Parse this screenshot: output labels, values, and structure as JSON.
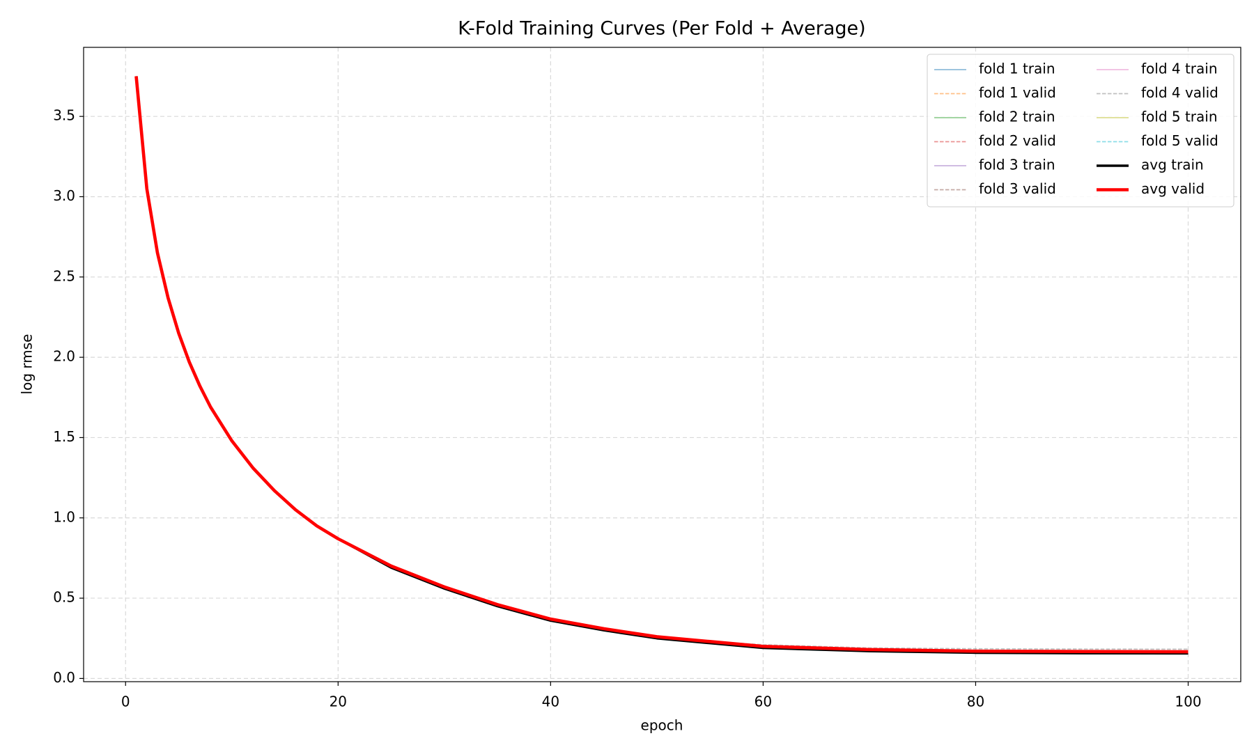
{
  "chart_data": {
    "type": "line",
    "title": "K-Fold Training Curves (Per Fold + Average)",
    "x_label": "epoch",
    "y_label": "log rmse",
    "x": [
      1,
      2,
      3,
      4,
      5,
      6,
      7,
      8,
      10,
      12,
      14,
      16,
      18,
      20,
      25,
      30,
      35,
      40,
      45,
      50,
      55,
      60,
      70,
      80,
      90,
      100
    ],
    "xlim": [
      -3.95,
      104.95
    ],
    "xticks": [
      0,
      20,
      40,
      60,
      80,
      100
    ],
    "ylim": [
      -0.02,
      3.93
    ],
    "yticks": [
      {
        "value": 0,
        "label": "0.0"
      },
      0.5,
      {
        "value": 1,
        "label": "1.0"
      },
      1.5,
      {
        "value": 2,
        "label": "2.0"
      },
      2.5,
      {
        "value": 3,
        "label": "3.0"
      },
      3.5
    ],
    "grid": true,
    "legend": "upper right",
    "legend_columns": 2,
    "series": [
      {
        "name": "fold 1 train",
        "color": "#1f77b4",
        "linestyle": "solid",
        "linewidth": 1.5,
        "alpha": 0.5,
        "values": [
          3.75,
          3.05,
          2.65,
          2.37,
          2.15,
          1.97,
          1.82,
          1.69,
          1.48,
          1.31,
          1.17,
          1.05,
          0.95,
          0.87,
          0.69,
          0.56,
          0.45,
          0.36,
          0.3,
          0.25,
          0.22,
          0.19,
          0.17,
          0.16,
          0.157,
          0.155
        ]
      },
      {
        "name": "fold 1 valid",
        "color": "#ff7f0e",
        "linestyle": "dashed",
        "linewidth": 1.5,
        "alpha": 0.5,
        "values": [
          3.75,
          3.05,
          2.65,
          2.37,
          2.15,
          1.97,
          1.82,
          1.69,
          1.48,
          1.31,
          1.17,
          1.05,
          0.95,
          0.87,
          0.7,
          0.57,
          0.46,
          0.37,
          0.31,
          0.26,
          0.23,
          0.2,
          0.18,
          0.17,
          0.168,
          0.166
        ]
      },
      {
        "name": "fold 2 train",
        "color": "#2ca02c",
        "linestyle": "solid",
        "linewidth": 1.5,
        "alpha": 0.5,
        "values": [
          3.75,
          3.05,
          2.65,
          2.37,
          2.15,
          1.97,
          1.82,
          1.69,
          1.48,
          1.31,
          1.17,
          1.05,
          0.95,
          0.87,
          0.69,
          0.56,
          0.45,
          0.36,
          0.3,
          0.25,
          0.22,
          0.19,
          0.17,
          0.16,
          0.158,
          0.157
        ]
      },
      {
        "name": "fold 2 valid",
        "color": "#d62728",
        "linestyle": "dashed",
        "linewidth": 1.5,
        "alpha": 0.5,
        "values": [
          3.75,
          3.05,
          2.65,
          2.37,
          2.15,
          1.97,
          1.82,
          1.69,
          1.48,
          1.31,
          1.17,
          1.05,
          0.95,
          0.87,
          0.7,
          0.57,
          0.46,
          0.37,
          0.31,
          0.26,
          0.23,
          0.2,
          0.18,
          0.17,
          0.165,
          0.163
        ]
      },
      {
        "name": "fold 3 train",
        "color": "#9467bd",
        "linestyle": "solid",
        "linewidth": 1.5,
        "alpha": 0.5,
        "values": [
          3.75,
          3.05,
          2.65,
          2.37,
          2.15,
          1.97,
          1.82,
          1.69,
          1.48,
          1.31,
          1.17,
          1.05,
          0.95,
          0.87,
          0.69,
          0.56,
          0.45,
          0.36,
          0.3,
          0.25,
          0.22,
          0.19,
          0.17,
          0.16,
          0.156,
          0.154
        ]
      },
      {
        "name": "fold 3 valid",
        "color": "#8c564b",
        "linestyle": "dashed",
        "linewidth": 1.5,
        "alpha": 0.5,
        "values": [
          3.75,
          3.05,
          2.65,
          2.37,
          2.15,
          1.97,
          1.82,
          1.69,
          1.48,
          1.31,
          1.17,
          1.05,
          0.95,
          0.87,
          0.7,
          0.57,
          0.46,
          0.37,
          0.31,
          0.26,
          0.23,
          0.2,
          0.18,
          0.17,
          0.166,
          0.164
        ]
      },
      {
        "name": "fold 4 train",
        "color": "#e377c2",
        "linestyle": "solid",
        "linewidth": 1.5,
        "alpha": 0.5,
        "values": [
          3.75,
          3.05,
          2.65,
          2.37,
          2.15,
          1.97,
          1.82,
          1.69,
          1.48,
          1.31,
          1.17,
          1.05,
          0.95,
          0.87,
          0.69,
          0.56,
          0.45,
          0.36,
          0.3,
          0.25,
          0.22,
          0.19,
          0.17,
          0.16,
          0.158,
          0.156
        ]
      },
      {
        "name": "fold 4 valid",
        "color": "#7f7f7f",
        "linestyle": "dashed",
        "linewidth": 1.5,
        "alpha": 0.5,
        "values": [
          3.75,
          3.05,
          2.65,
          2.37,
          2.15,
          1.97,
          1.82,
          1.69,
          1.48,
          1.31,
          1.17,
          1.05,
          0.95,
          0.87,
          0.7,
          0.57,
          0.46,
          0.37,
          0.31,
          0.26,
          0.23,
          0.21,
          0.19,
          0.185,
          0.183,
          0.182
        ]
      },
      {
        "name": "fold 5 train",
        "color": "#bcbd22",
        "linestyle": "solid",
        "linewidth": 1.5,
        "alpha": 0.5,
        "values": [
          3.75,
          3.05,
          2.65,
          2.37,
          2.15,
          1.97,
          1.82,
          1.69,
          1.48,
          1.31,
          1.17,
          1.05,
          0.95,
          0.87,
          0.69,
          0.56,
          0.45,
          0.36,
          0.3,
          0.25,
          0.22,
          0.19,
          0.17,
          0.16,
          0.157,
          0.156
        ]
      },
      {
        "name": "fold 5 valid",
        "color": "#17becf",
        "linestyle": "dashed",
        "linewidth": 1.5,
        "alpha": 0.5,
        "values": [
          3.75,
          3.05,
          2.65,
          2.37,
          2.15,
          1.97,
          1.82,
          1.69,
          1.48,
          1.31,
          1.17,
          1.05,
          0.95,
          0.87,
          0.7,
          0.57,
          0.46,
          0.37,
          0.31,
          0.26,
          0.23,
          0.2,
          0.18,
          0.17,
          0.167,
          0.165
        ]
      },
      {
        "name": "avg train",
        "color": "#000000",
        "linestyle": "solid",
        "linewidth": 3,
        "alpha": 1,
        "values": [
          3.75,
          3.05,
          2.65,
          2.37,
          2.15,
          1.97,
          1.82,
          1.69,
          1.48,
          1.31,
          1.17,
          1.05,
          0.95,
          0.87,
          0.69,
          0.56,
          0.45,
          0.36,
          0.3,
          0.25,
          0.22,
          0.19,
          0.17,
          0.16,
          0.157,
          0.156
        ]
      },
      {
        "name": "avg valid",
        "color": "#ff0000",
        "linestyle": "solid",
        "linewidth": 4,
        "alpha": 1,
        "values": [
          3.75,
          3.05,
          2.65,
          2.37,
          2.15,
          1.97,
          1.82,
          1.69,
          1.48,
          1.31,
          1.17,
          1.05,
          0.95,
          0.87,
          0.7,
          0.57,
          0.46,
          0.37,
          0.31,
          0.26,
          0.23,
          0.2,
          0.18,
          0.17,
          0.168,
          0.166
        ]
      }
    ]
  }
}
